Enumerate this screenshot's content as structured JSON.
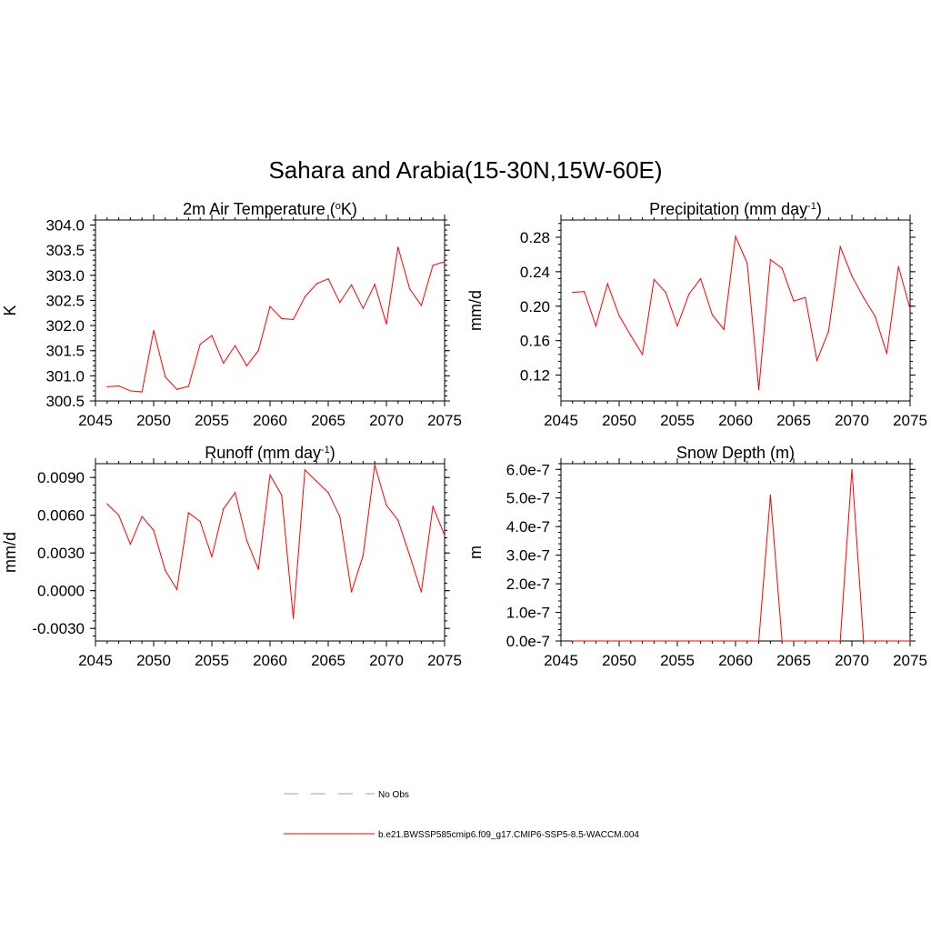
{
  "title": "Sahara and Arabia(15-30N,15W-60E)",
  "colors": {
    "series": "#ff0000",
    "obs": "#9999dd",
    "axis": "#000000"
  },
  "legend": {
    "obs_label": "No Obs",
    "model_label": "b.e21.BWSSP585cmip6.f09_g17.CMIP6-SSP5-8.5-WACCM.004"
  },
  "chart_data": [
    {
      "type": "line",
      "title_main": "2m Air Temperature (",
      "title_sup": "o",
      "title_end": "K)",
      "ylabel": "K",
      "xlim": [
        2045,
        2075
      ],
      "ylim": [
        300.5,
        304.1
      ],
      "xticks": [
        "2045",
        "2050",
        "2055",
        "2060",
        "2065",
        "2070",
        "2075"
      ],
      "yticks": [
        "300.5",
        "301.0",
        "301.5",
        "302.0",
        "302.5",
        "303.0",
        "303.5",
        "304.0"
      ],
      "ytick_values": [
        300.5,
        301.0,
        301.5,
        302.0,
        302.5,
        303.0,
        303.5,
        304.0
      ],
      "x": [
        2046,
        2047,
        2048,
        2049,
        2050,
        2051,
        2052,
        2053,
        2054,
        2055,
        2056,
        2057,
        2058,
        2059,
        2060,
        2061,
        2062,
        2063,
        2064,
        2065,
        2066,
        2067,
        2068,
        2069,
        2070,
        2071,
        2072,
        2073,
        2074,
        2075
      ],
      "values": [
        300.78,
        300.8,
        300.7,
        300.68,
        301.9,
        300.98,
        300.73,
        300.79,
        301.63,
        301.8,
        301.25,
        301.6,
        301.2,
        301.5,
        302.38,
        302.14,
        302.12,
        302.57,
        302.83,
        302.93,
        302.46,
        302.81,
        302.34,
        302.82,
        302.03,
        303.56,
        302.73,
        302.4,
        303.2,
        303.27
      ]
    },
    {
      "type": "line",
      "title_main": "Precipitation (mm day",
      "title_sup": "-1",
      "title_end": ")",
      "ylabel": "mm/d",
      "xlim": [
        2045,
        2075
      ],
      "ylim": [
        0.09,
        0.3
      ],
      "xticks": [
        "2045",
        "2050",
        "2055",
        "2060",
        "2065",
        "2070",
        "2075"
      ],
      "yticks": [
        "0.12",
        "0.16",
        "0.20",
        "0.24",
        "0.28"
      ],
      "ytick_values": [
        0.12,
        0.16,
        0.2,
        0.24,
        0.28
      ],
      "x": [
        2046,
        2047,
        2048,
        2049,
        2050,
        2051,
        2052,
        2053,
        2054,
        2055,
        2056,
        2057,
        2058,
        2059,
        2060,
        2061,
        2062,
        2063,
        2064,
        2065,
        2066,
        2067,
        2068,
        2069,
        2070,
        2071,
        2072,
        2073,
        2074,
        2075
      ],
      "values": [
        0.216,
        0.217,
        0.177,
        0.226,
        0.189,
        0.166,
        0.144,
        0.231,
        0.216,
        0.177,
        0.214,
        0.232,
        0.19,
        0.173,
        0.281,
        0.25,
        0.103,
        0.254,
        0.244,
        0.206,
        0.21,
        0.137,
        0.171,
        0.269,
        0.235,
        0.21,
        0.188,
        0.145,
        0.246,
        0.197
      ]
    },
    {
      "type": "line",
      "title_main": "Runoff (mm day",
      "title_sup": "-1",
      "title_end": ")",
      "ylabel": "mm/d",
      "xlim": [
        2045,
        2075
      ],
      "ylim": [
        -0.004,
        0.0101
      ],
      "xticks": [
        "2045",
        "2050",
        "2055",
        "2060",
        "2065",
        "2070",
        "2075"
      ],
      "yticks": [
        "-0.0030",
        "0.0000",
        "0.0030",
        "0.0060",
        "0.0090"
      ],
      "ytick_values": [
        -0.003,
        0.0,
        0.003,
        0.006,
        0.009
      ],
      "x": [
        2046,
        2047,
        2048,
        2049,
        2050,
        2051,
        2052,
        2053,
        2054,
        2055,
        2056,
        2057,
        2058,
        2059,
        2060,
        2061,
        2062,
        2063,
        2064,
        2065,
        2066,
        2067,
        2068,
        2069,
        2070,
        2071,
        2072,
        2073,
        2074,
        2075
      ],
      "values": [
        0.0069,
        0.006,
        0.0037,
        0.0059,
        0.0048,
        0.0016,
        0.0001,
        0.0062,
        0.0055,
        0.0027,
        0.0065,
        0.0078,
        0.004,
        0.0017,
        0.0092,
        0.0076,
        -0.0022,
        0.0096,
        0.0087,
        0.0078,
        0.0059,
        -0.0001,
        0.0028,
        0.01,
        0.0068,
        0.0056,
        0.0028,
        -0.0001,
        0.0067,
        0.0044
      ]
    },
    {
      "type": "line",
      "title_main": "Snow Depth (m)",
      "title_sup": "",
      "title_end": "",
      "ylabel": "m",
      "xlim": [
        2045,
        2075
      ],
      "ylim": [
        0,
        6.2e-07
      ],
      "xticks": [
        "2045",
        "2050",
        "2055",
        "2060",
        "2065",
        "2070",
        "2075"
      ],
      "yticks": [
        "0.0e-7",
        "1.0e-7",
        "2.0e-7",
        "3.0e-7",
        "4.0e-7",
        "5.0e-7",
        "6.0e-7"
      ],
      "ytick_values": [
        0,
        1e-07,
        2e-07,
        3e-07,
        4e-07,
        5e-07,
        6e-07
      ],
      "x": [
        2046,
        2047,
        2048,
        2049,
        2050,
        2051,
        2052,
        2053,
        2054,
        2055,
        2056,
        2057,
        2058,
        2059,
        2060,
        2061,
        2062,
        2063,
        2064,
        2065,
        2066,
        2067,
        2068,
        2069,
        2070,
        2071,
        2072,
        2073,
        2074,
        2075
      ],
      "values": [
        0,
        0,
        0,
        0,
        0,
        0,
        0,
        0,
        0,
        0,
        0,
        0,
        0,
        0,
        0,
        0,
        0,
        5.1e-07,
        0,
        0,
        0,
        0,
        0,
        0,
        6e-07,
        0,
        0,
        0,
        0,
        0
      ]
    }
  ]
}
